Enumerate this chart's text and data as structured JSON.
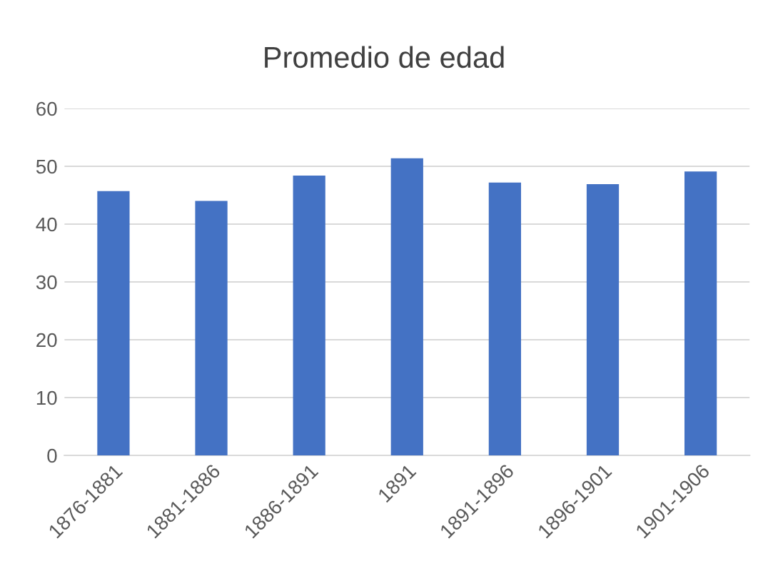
{
  "chart_data": {
    "type": "bar",
    "title": "Promedio de edad",
    "categories": [
      "1876-1881",
      "1881-1886",
      "1886-1891",
      "1891",
      "1891-1896",
      "1896-1901",
      "1901-1906"
    ],
    "values": [
      45.7,
      44.0,
      48.4,
      51.4,
      47.2,
      46.9,
      49.1
    ],
    "color": "#4472c4",
    "ylim": [
      0,
      60
    ],
    "yticks": [
      0,
      10,
      20,
      30,
      40,
      50,
      60
    ],
    "grid": "y",
    "legend": false
  }
}
